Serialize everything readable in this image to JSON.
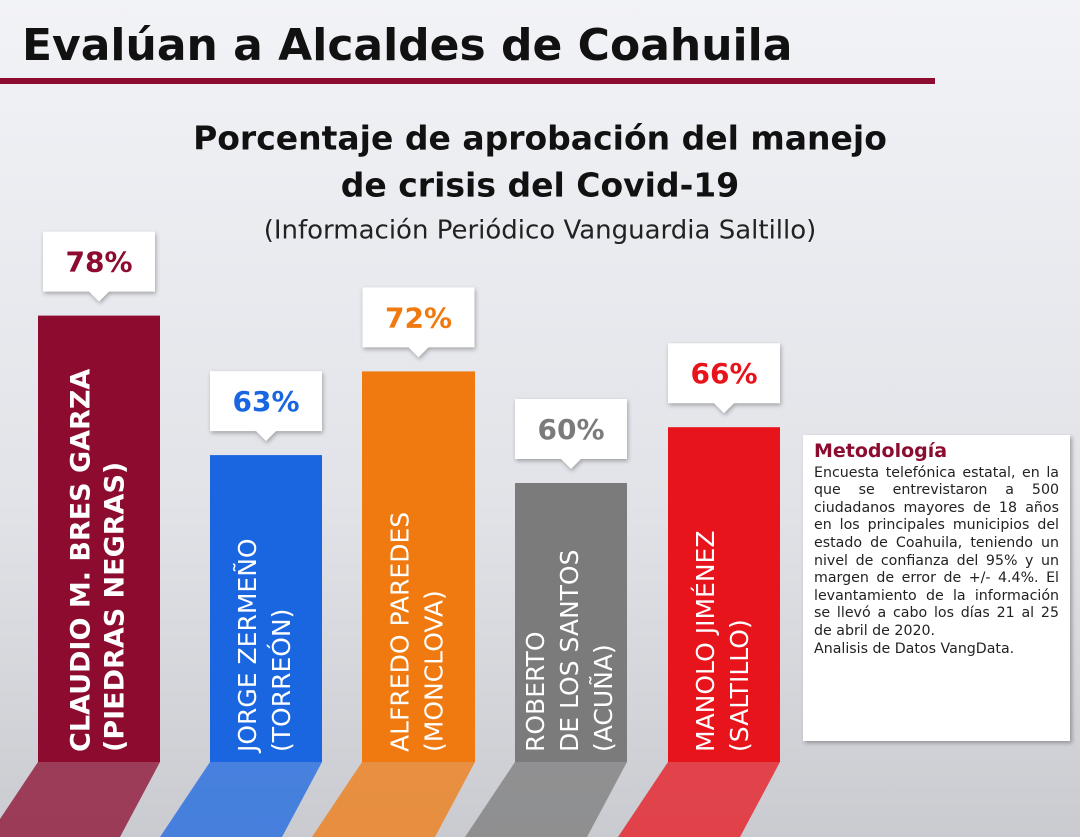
{
  "header": {
    "title": "Evalúan a Alcaldes de Coahuila"
  },
  "chart_data": {
    "type": "bar",
    "title": [
      "Porcentaje de aprobación del manejo",
      "de crisis del Covid-19"
    ],
    "subtitle": "(Información Periódico Vanguardia Saltillo)",
    "categories": [
      [
        "CLAUDIO M. BRES GARZA",
        "(PIEDRAS NEGRAS)"
      ],
      [
        "JORGE ZERMEÑO",
        "(TORREÓN)"
      ],
      [
        "ALFREDO PAREDES",
        "(MONCLOVA)"
      ],
      [
        "ROBERTO",
        "DE LOS SANTOS",
        "(ACUÑA)"
      ],
      [
        "MANOLO JIMÉNEZ",
        "(SALTILLO)"
      ]
    ],
    "values": [
      78,
      63,
      72,
      60,
      66
    ],
    "value_labels": [
      "78%",
      "63%",
      "72%",
      "60%",
      "66%"
    ],
    "colors": [
      "#8c0b2f",
      "#1a66e0",
      "#f07a10",
      "#7b7b7b",
      "#e8141c"
    ],
    "label_colors": [
      "#8c0b2f",
      "#1a66e0",
      "#f07a10",
      "#7b7b7b",
      "#e8141c"
    ],
    "ylim": [
      30,
      80
    ]
  },
  "methodology": {
    "title": "Metodología",
    "text": "Encuesta telefónica estatal, en la que se entrevistaron a 500 ciudadanos mayores de 18 años en los principales municipios del estado de Coahuila, teniendo un nivel de confianza del 95% y un margen de error de +/- 4.4%. El levantamiento de la información se llevó a cabo los días 21 al 25 de abril de 2020.",
    "credit": "Analisis de Datos VangData."
  }
}
